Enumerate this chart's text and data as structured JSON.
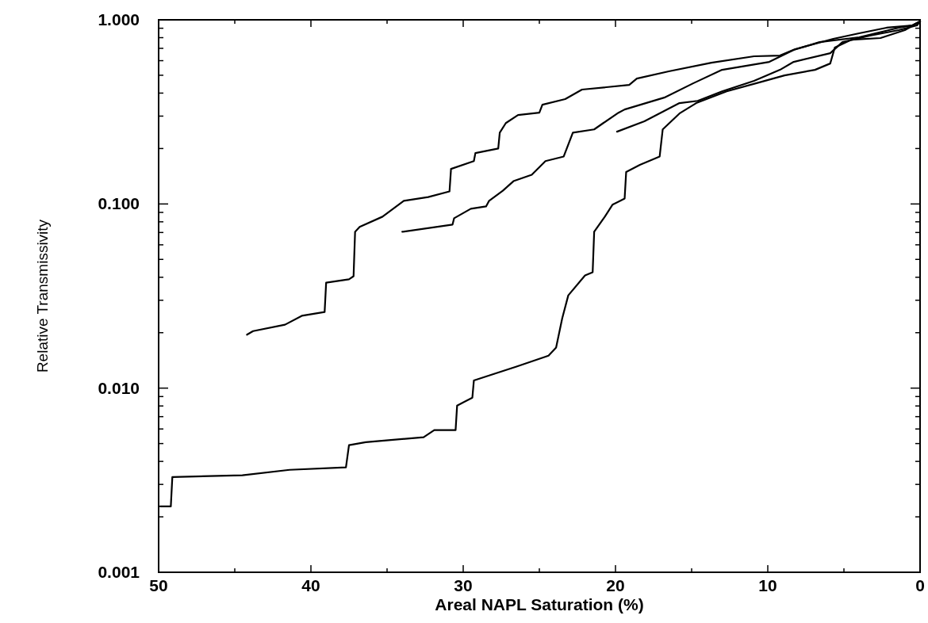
{
  "chart_data": {
    "type": "line",
    "xlabel": "Areal NAPL Saturation (%)",
    "ylabel": "Relative Transmissivity",
    "log": "y",
    "grid": false,
    "marker": "none",
    "line_style": "solid",
    "xlim": [
      50,
      0
    ],
    "ylim": [
      0.001,
      1
    ],
    "xticks": [
      50,
      {
        "value": 45,
        "label": null
      },
      40,
      {
        "value": 35,
        "label": null
      },
      30,
      {
        "value": 25,
        "label": null
      },
      20,
      {
        "value": 15,
        "label": null
      },
      10,
      {
        "value": 5,
        "label": null
      },
      0
    ],
    "yticks": [
      {
        "value": 0.001,
        "label": "0.001"
      },
      {
        "value": 0.002,
        "label": null
      },
      {
        "value": 0.003,
        "label": null
      },
      {
        "value": 0.004,
        "label": null
      },
      {
        "value": 0.005,
        "label": null
      },
      {
        "value": 0.006,
        "label": null
      },
      {
        "value": 0.007,
        "label": null
      },
      {
        "value": 0.008,
        "label": null
      },
      {
        "value": 0.009,
        "label": null
      },
      {
        "value": 0.01,
        "label": "0.010"
      },
      {
        "value": 0.02,
        "label": null
      },
      {
        "value": 0.03,
        "label": null
      },
      {
        "value": 0.04,
        "label": null
      },
      {
        "value": 0.05,
        "label": null
      },
      {
        "value": 0.06,
        "label": null
      },
      {
        "value": 0.07,
        "label": null
      },
      {
        "value": 0.08,
        "label": null
      },
      {
        "value": 0.09,
        "label": null
      },
      {
        "value": 0.1,
        "label": "0.100"
      },
      {
        "value": 0.2,
        "label": null
      },
      {
        "value": 0.3,
        "label": null
      },
      {
        "value": 0.4,
        "label": null
      },
      {
        "value": 0.5,
        "label": null
      },
      {
        "value": 0.6,
        "label": null
      },
      {
        "value": 0.7,
        "label": null
      },
      {
        "value": 0.8,
        "label": null
      },
      {
        "value": 0.9,
        "label": null
      },
      {
        "value": 1,
        "label": "1.000"
      }
    ],
    "series": [
      {
        "color": "#000000",
        "x": [
          44.2,
          43.8,
          41.7,
          40.6,
          39.1,
          39.0,
          37.5,
          37.2,
          37.1,
          36.8,
          35.3,
          33.9,
          32.3,
          30.9,
          30.8,
          29.3,
          29.2,
          27.7,
          27.6,
          27.2,
          26.4,
          25.0,
          24.8,
          23.3,
          22.2,
          19.1,
          18.6,
          16.5,
          13.7,
          10.9,
          9.2,
          8.2,
          5.7,
          4.0,
          2.2,
          0.5,
          0
        ],
        "values": [
          0.0195,
          0.0204,
          0.0221,
          0.0247,
          0.0259,
          0.0374,
          0.039,
          0.0405,
          0.0706,
          0.075,
          0.0853,
          0.104,
          0.109,
          0.117,
          0.155,
          0.171,
          0.189,
          0.2,
          0.244,
          0.275,
          0.304,
          0.313,
          0.346,
          0.371,
          0.418,
          0.443,
          0.48,
          0.525,
          0.585,
          0.634,
          0.64,
          0.693,
          0.788,
          0.845,
          0.906,
          0.933,
          0.98
        ]
      },
      {
        "color": "#000000",
        "x": [
          34.0,
          30.7,
          30.6,
          29.5,
          28.5,
          28.3,
          27.4,
          26.7,
          25.5,
          24.6,
          23.4,
          22.8,
          21.4,
          20.8,
          19.8,
          19.4,
          16.8,
          14.9,
          13.0,
          9.9,
          8.3,
          6.6,
          4.0,
          1.4,
          0.5,
          0
        ],
        "values": [
          0.0706,
          0.0773,
          0.0836,
          0.0942,
          0.097,
          0.104,
          0.118,
          0.133,
          0.144,
          0.171,
          0.181,
          0.244,
          0.254,
          0.275,
          0.313,
          0.326,
          0.378,
          0.452,
          0.535,
          0.591,
          0.686,
          0.757,
          0.804,
          0.906,
          0.933,
          0.98
        ]
      },
      {
        "color": "#000000",
        "x": [
          19.9,
          18.1,
          15.8,
          14.6,
          13.0,
          10.9,
          9.2,
          8.3,
          5.9,
          5.1,
          3.3,
          1.4,
          0.2,
          0
        ],
        "values": [
          0.247,
          0.281,
          0.353,
          0.363,
          0.409,
          0.466,
          0.535,
          0.591,
          0.659,
          0.757,
          0.82,
          0.879,
          0.933,
          0.98
        ]
      },
      {
        "color": "#000000",
        "x": [
          49.9,
          49.2,
          49.1,
          44.5,
          41.4,
          37.7,
          37.5,
          36.4,
          32.6,
          31.9,
          30.5,
          30.4,
          29.4,
          29.3,
          28.3,
          26.5,
          24.4,
          23.9,
          23.5,
          23.1,
          22.0,
          21.5,
          21.4,
          20.7,
          20.2,
          19.4,
          19.3,
          18.4,
          17.1,
          16.9,
          15.8,
          14.7,
          12.7,
          10.4,
          8.9,
          6.9,
          5.9,
          5.6,
          4.5,
          2.6,
          1.0,
          0
        ],
        "values": [
          0.00228,
          0.00228,
          0.00329,
          0.00336,
          0.0036,
          0.00371,
          0.0049,
          0.00509,
          0.00541,
          0.00592,
          0.00592,
          0.00804,
          0.00887,
          0.011,
          0.0117,
          0.0131,
          0.015,
          0.0166,
          0.0239,
          0.0319,
          0.0409,
          0.0426,
          0.0706,
          0.0853,
          0.099,
          0.107,
          0.149,
          0.163,
          0.181,
          0.254,
          0.31,
          0.353,
          0.409,
          0.461,
          0.499,
          0.535,
          0.579,
          0.707,
          0.78,
          0.796,
          0.879,
          0.98
        ]
      }
    ]
  }
}
